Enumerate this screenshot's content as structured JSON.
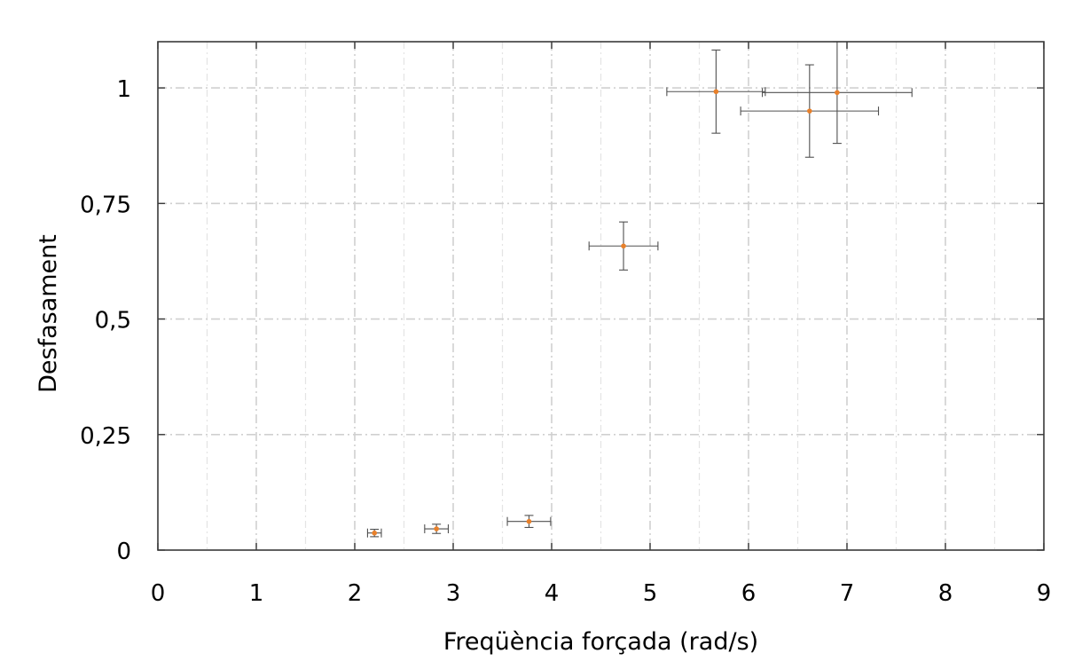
{
  "chart_data": {
    "type": "scatter",
    "title": "",
    "xlabel": "Freqüència forçada (rad/s)",
    "ylabel": "Desfasament",
    "xlim": [
      0,
      9
    ],
    "ylim": [
      0,
      1.1
    ],
    "xticks": [
      0,
      1,
      2,
      3,
      4,
      5,
      6,
      7,
      8,
      9
    ],
    "xtick_labels": [
      "0",
      "1",
      "2",
      "3",
      "4",
      "5",
      "6",
      "7",
      "8",
      "9"
    ],
    "yticks": [
      0,
      0.25,
      0.5,
      0.75,
      1
    ],
    "ytick_labels": [
      "0",
      "0,25",
      "0,5",
      "0,75",
      "1"
    ],
    "grid": true,
    "legend": "none",
    "marker_color": "#e8802a",
    "errorbar_color": "#505050",
    "points": [
      {
        "x": 2.2,
        "y": 0.037,
        "xerr": 0.07,
        "yerr": 0.008
      },
      {
        "x": 2.83,
        "y": 0.046,
        "xerr": 0.12,
        "yerr": 0.01
      },
      {
        "x": 3.77,
        "y": 0.062,
        "xerr": 0.22,
        "yerr": 0.013
      },
      {
        "x": 4.73,
        "y": 0.658,
        "xerr": 0.35,
        "yerr": 0.052
      },
      {
        "x": 5.67,
        "y": 0.992,
        "xerr": 0.5,
        "yerr": 0.09
      },
      {
        "x": 6.62,
        "y": 0.95,
        "xerr": 0.7,
        "yerr": 0.1
      },
      {
        "x": 6.9,
        "y": 0.99,
        "xerr": 0.76,
        "yerr": 0.11
      }
    ]
  }
}
